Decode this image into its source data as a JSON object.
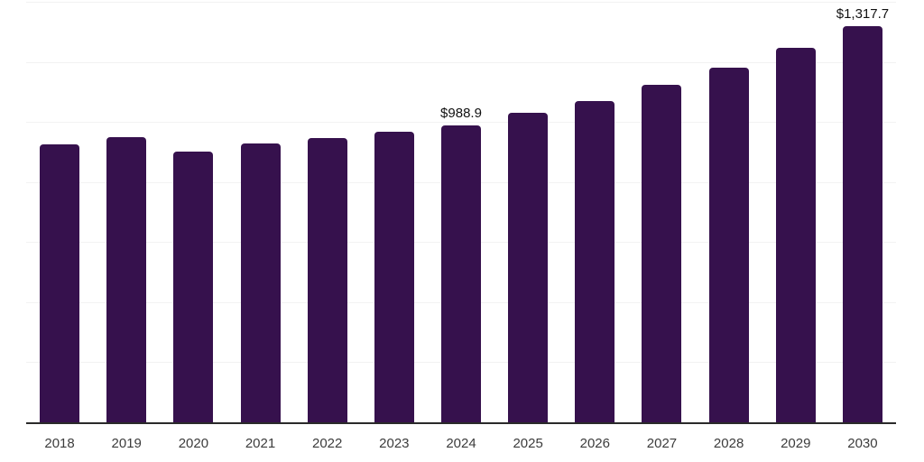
{
  "chart_data": {
    "type": "bar",
    "title": "",
    "xlabel": "",
    "ylabel": "",
    "categories": [
      "2018",
      "2019",
      "2020",
      "2021",
      "2022",
      "2023",
      "2024",
      "2025",
      "2026",
      "2027",
      "2028",
      "2029",
      "2030"
    ],
    "values": [
      925,
      949,
      901,
      927,
      947,
      966,
      988.9,
      1030,
      1071,
      1124,
      1180,
      1246,
      1317.7
    ],
    "data_labels": {
      "2024": "$988.9",
      "2030": "$1,317.7"
    },
    "ylim": [
      0,
      1400
    ],
    "grid_step": 200,
    "grid": true,
    "legend": false,
    "colors": {
      "bar": "#36114d",
      "gridline": "#f2f2f2",
      "axis_line": "#2a2a2a",
      "data_label": "#111111",
      "tick_label": "#3c3c3c",
      "background": "#ffffff"
    }
  }
}
